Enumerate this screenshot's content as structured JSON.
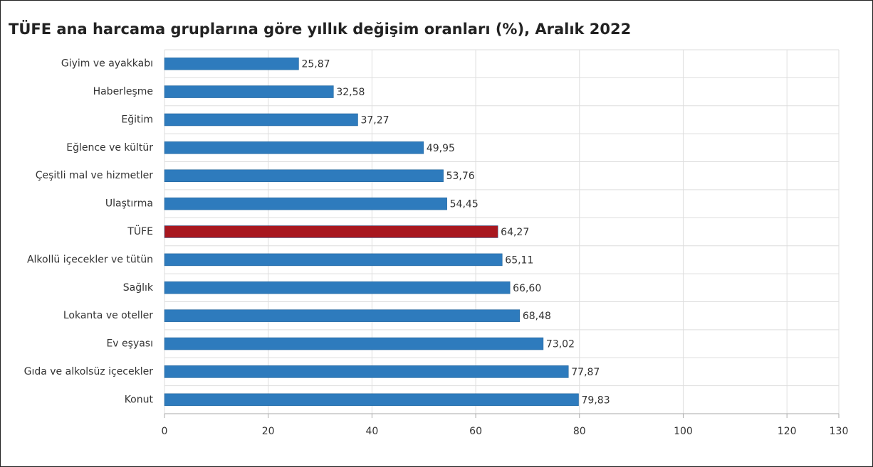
{
  "chart_data": {
    "type": "barh",
    "title": "TÜFE ana harcama gruplarına göre yıllık değişim oranları (%), Aralık 2022",
    "categories": [
      "Giyim ve ayakkabı",
      "Haberleşme",
      "Eğitim",
      "Eğlence ve kültür",
      "Çeşitli mal ve hizmetler",
      "Ulaştırma",
      "TÜFE",
      "Alkollü içecekler ve tütün",
      "Sağlık",
      "Lokanta ve oteller",
      "Ev eşyası",
      "Gıda ve alkolsüz içecekler",
      "Konut"
    ],
    "values": [
      25.87,
      32.58,
      37.27,
      49.95,
      53.76,
      54.45,
      64.27,
      65.11,
      66.6,
      68.48,
      73.02,
      77.87,
      79.83
    ],
    "value_labels": [
      "25,87",
      "32,58",
      "37,27",
      "49,95",
      "53,76",
      "54,45",
      "64,27",
      "65,11",
      "66,60",
      "68,48",
      "73,02",
      "77,87",
      "79,83"
    ],
    "colors": [
      "#2e7bbd",
      "#2e7bbd",
      "#2e7bbd",
      "#2e7bbd",
      "#2e7bbd",
      "#2e7bbd",
      "#a8171f",
      "#2e7bbd",
      "#2e7bbd",
      "#2e7bbd",
      "#2e7bbd",
      "#2e7bbd",
      "#2e7bbd"
    ],
    "xlim": [
      0,
      130
    ],
    "xticks": [
      0,
      20,
      40,
      60,
      80,
      100,
      120,
      130
    ],
    "grid": true
  }
}
